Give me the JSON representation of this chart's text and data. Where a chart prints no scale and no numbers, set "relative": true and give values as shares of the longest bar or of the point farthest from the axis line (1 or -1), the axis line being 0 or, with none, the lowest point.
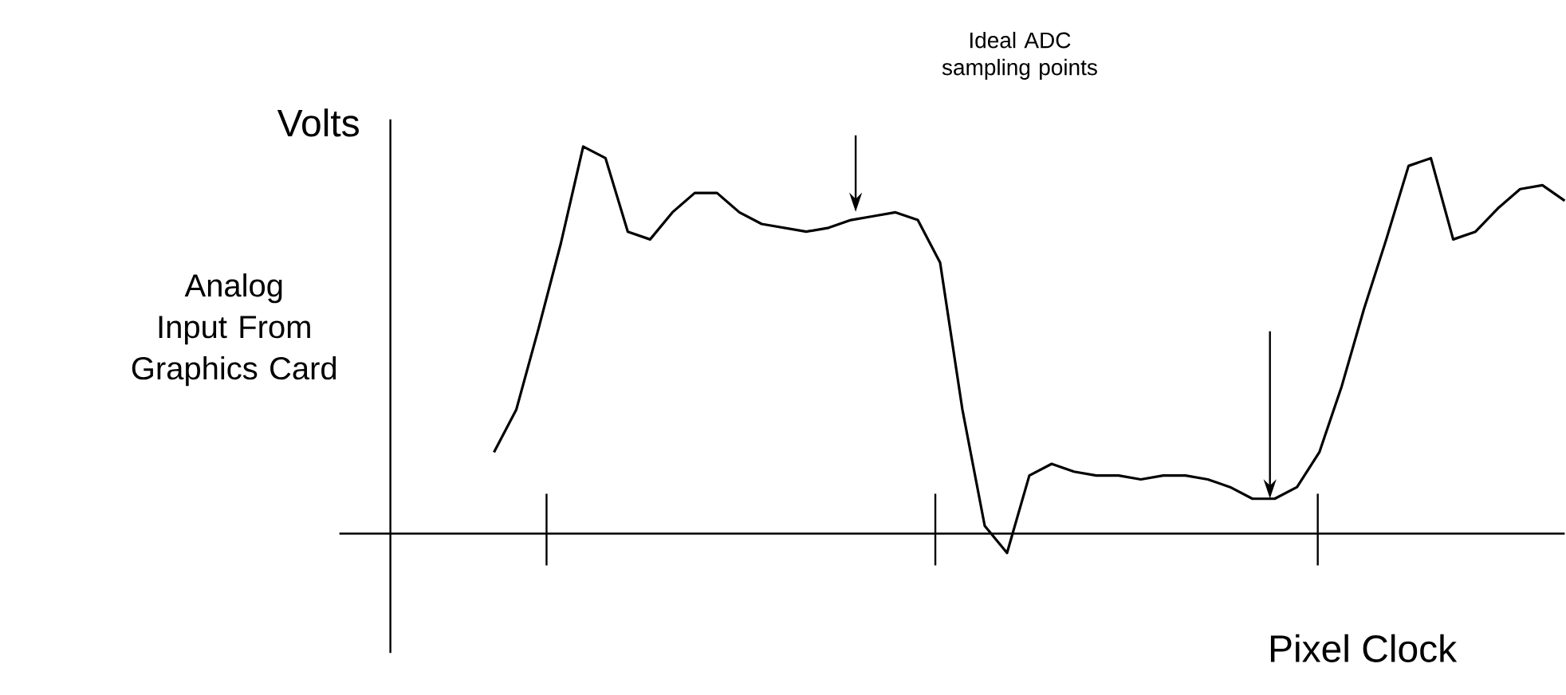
{
  "chart_data": {
    "type": "line",
    "relative": true,
    "title": "Volts",
    "ylabel": "Analog Input From Graphics Card",
    "xlabel": "Pixel Clock",
    "color": "#000000",
    "marker": "none",
    "annotations": [
      "Ideal ADC sampling points"
    ],
    "categories": [
      null,
      null,
      null,
      null,
      null,
      null,
      null,
      null,
      null,
      null,
      null,
      null,
      null,
      null,
      null,
      null,
      null,
      null,
      null,
      null,
      null,
      null,
      null,
      null,
      null,
      null,
      null,
      null,
      null,
      null,
      null,
      null,
      null,
      null,
      null,
      null,
      null,
      null,
      null,
      null,
      null,
      null,
      null,
      null,
      null,
      null,
      null,
      null,
      null
    ],
    "values": [
      0.21,
      0.32,
      0.53,
      0.75,
      1.0,
      0.97,
      0.78,
      0.76,
      0.83,
      0.88,
      0.88,
      0.83,
      0.8,
      0.79,
      0.78,
      0.79,
      0.81,
      0.82,
      0.83,
      0.81,
      0.7,
      0.32,
      0.02,
      -0.05,
      0.15,
      0.18,
      0.16,
      0.15,
      0.15,
      0.14,
      0.15,
      0.15,
      0.14,
      0.12,
      0.09,
      0.09,
      0.12,
      0.21,
      0.38,
      0.58,
      0.76,
      0.95,
      0.97,
      0.76,
      0.78,
      0.84,
      0.89,
      0.9,
      0.86
    ]
  }
}
